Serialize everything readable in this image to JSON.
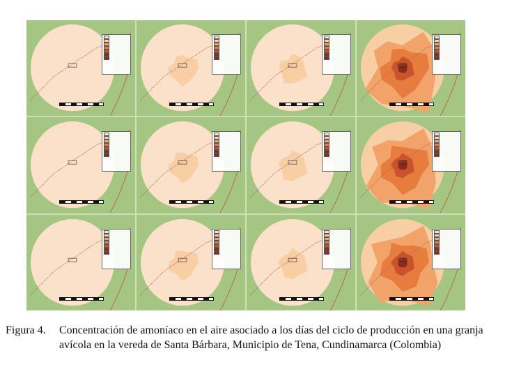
{
  "figure": {
    "rows": 3,
    "cols": 4,
    "intensity": [
      [
        0,
        1,
        1,
        3
      ],
      [
        0,
        1,
        1,
        3
      ],
      [
        0,
        1,
        1,
        3
      ]
    ],
    "colors": {
      "background": "#a4c682",
      "level0": "#fbe1c9",
      "level1": "#f8cfa5",
      "level2": "#f2a36a",
      "level3": "#e77c3f",
      "level4": "#c9532a",
      "level5": "#8a2c1a"
    }
  },
  "caption": {
    "label": "Figura 4.",
    "text": "Concentración de amoníaco en el aire asociado a los días del ciclo de producción en una granja avícola en la vereda de Santa Bárbara, Municipio de Tena, Cundinamarca (Colombia)"
  }
}
